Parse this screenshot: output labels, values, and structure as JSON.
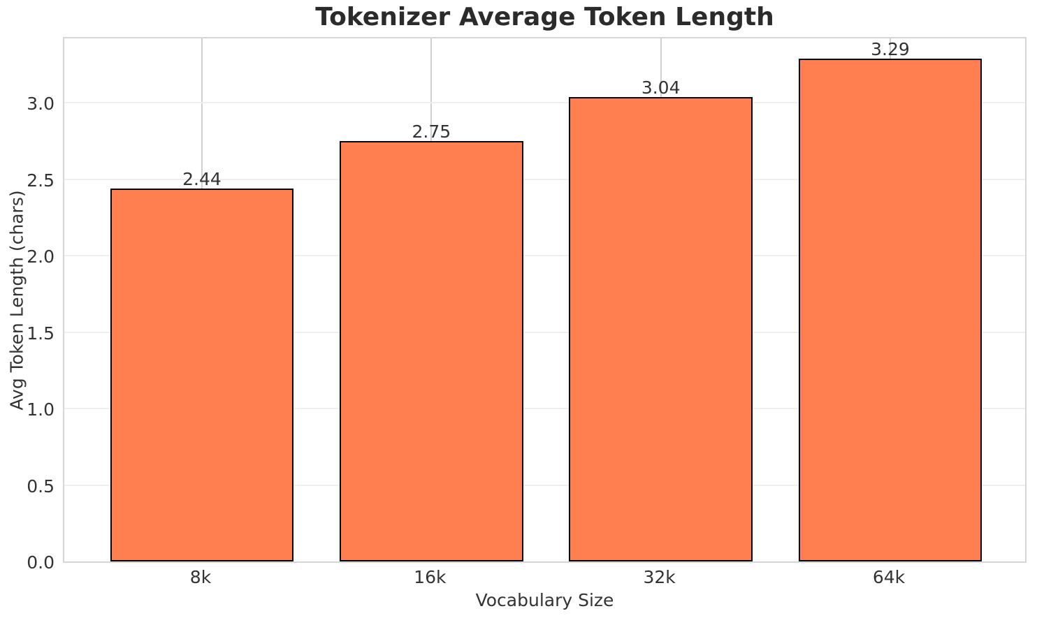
{
  "chart_data": {
    "type": "bar",
    "title": "Tokenizer Average Token Length",
    "xlabel": "Vocabulary Size",
    "ylabel": "Avg Token Length (chars)",
    "categories": [
      "8k",
      "16k",
      "32k",
      "64k"
    ],
    "values": [
      2.44,
      2.75,
      3.04,
      3.29
    ],
    "bar_labels": [
      "2.44",
      "2.75",
      "3.04",
      "3.29"
    ],
    "yticks": [
      0.0,
      0.5,
      1.0,
      1.5,
      2.0,
      2.5,
      3.0
    ],
    "ytick_labels": [
      "0.0",
      "0.5",
      "1.0",
      "1.5",
      "2.0",
      "2.5",
      "3.0"
    ],
    "ylim": [
      0,
      3.44
    ],
    "xlim_units": [
      -0.6,
      3.6
    ],
    "bar_width_units": 0.8,
    "grid": "both",
    "legend": "none",
    "colors": {
      "bar_fill": "#FF7F50",
      "bar_edge": "#000000",
      "grid_horizontal": "#efefef",
      "grid_vertical": "#d0d0d0",
      "spine": "#d6d6d6",
      "tick_text": "#333333",
      "title_text": "#2b2b2b",
      "background": "#ffffff"
    }
  }
}
